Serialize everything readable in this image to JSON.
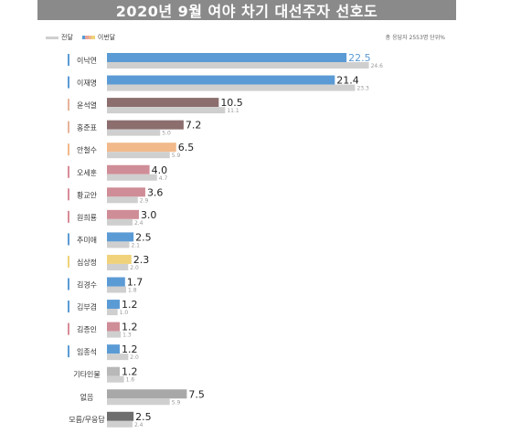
{
  "header": {
    "title": "2020년 9월 여야 차기 대선주자 선호도"
  },
  "legend": {
    "previous_label": "전달",
    "current_label": "이번달",
    "current_swatch_colors": [
      "#5b9bd5",
      "#e8a39b",
      "#f2b98a",
      "#f0d27a"
    ]
  },
  "note": "총 응답자 2553명 단위%",
  "colors": {
    "previous_bar": "#cfcfcf",
    "highlight_value": "#5b9bd5"
  },
  "chart_data": {
    "type": "bar",
    "orientation": "horizontal",
    "categories": [
      "이낙연",
      "이재명",
      "윤석열",
      "홍준표",
      "안철수",
      "오세훈",
      "황교안",
      "원희룡",
      "추미애",
      "심상정",
      "김경수",
      "김부겸",
      "김종인",
      "임종석",
      "기타인물",
      "없음",
      "모름/무응답"
    ],
    "series": [
      {
        "name": "이번달",
        "values": [
          22.5,
          21.4,
          10.5,
          7.2,
          6.5,
          4.0,
          3.6,
          3.0,
          2.5,
          2.3,
          1.7,
          1.2,
          1.2,
          1.2,
          1.2,
          7.5,
          2.5
        ],
        "labels": [
          "22.5",
          "21.4",
          "10.5",
          "7.2",
          "6.5",
          "4.0",
          "3.6",
          "3.0",
          "2.5",
          "2.3",
          "1.7",
          "1.2",
          "1.2",
          "1.2",
          "1.2",
          "7.5",
          "2.5"
        ],
        "colors": [
          "#5b9bd5",
          "#5b9bd5",
          "#8c6e6e",
          "#8c6e6e",
          "#f2b98a",
          "#cf8d97",
          "#cf8d97",
          "#cf8d97",
          "#5b9bd5",
          "#f0d27a",
          "#5b9bd5",
          "#5b9bd5",
          "#cf8d97",
          "#5b9bd5",
          "#b8b8b8",
          "#a8a8a8",
          "#6e6e6e"
        ]
      },
      {
        "name": "전달",
        "values": [
          24.6,
          23.3,
          11.1,
          5.0,
          5.9,
          4.7,
          2.9,
          2.4,
          2.1,
          2.0,
          1.8,
          1.0,
          1.3,
          2.0,
          1.6,
          5.9,
          2.4
        ],
        "labels": [
          "24.6",
          "23.3",
          "11.1",
          "5.0",
          "5.9",
          "4.7",
          "2.9",
          "2.4",
          "2.1",
          "2.0",
          "1.8",
          "1.0",
          "1.3",
          "2.0",
          "1.6",
          "5.9",
          "2.4"
        ]
      }
    ],
    "category_marker_colors": [
      "#5b9bd5",
      "#5b9bd5",
      "#e8b49b",
      "#e8b49b",
      "#f2b98a",
      "#d98c98",
      "#d98c98",
      "#d98c98",
      "#5b9bd5",
      "#f0d27a",
      "#5b9bd5",
      "#5b9bd5",
      "#d98c98",
      "#5b9bd5",
      "",
      "",
      ""
    ],
    "xlim": [
      0,
      25
    ],
    "grid": false,
    "legend_position": "top-left"
  }
}
